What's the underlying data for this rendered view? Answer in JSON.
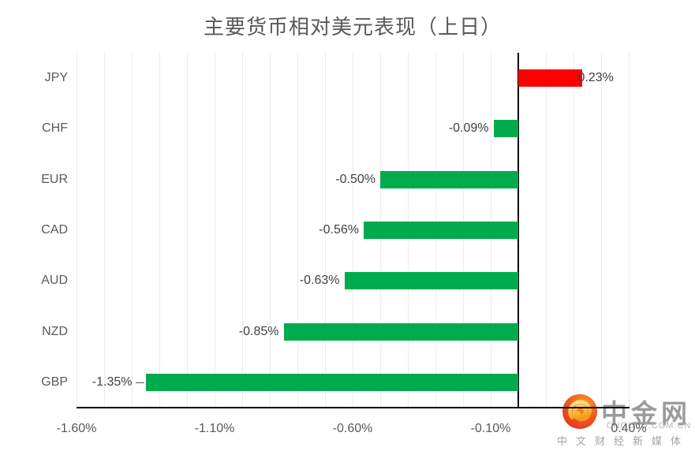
{
  "title": "主要货币相对美元表现（上日）",
  "chart_data": {
    "type": "bar",
    "orientation": "horizontal",
    "categories": [
      "JPY",
      "CHF",
      "EUR",
      "CAD",
      "AUD",
      "NZD",
      "GBP"
    ],
    "values": [
      0.23,
      -0.09,
      -0.5,
      -0.56,
      -0.63,
      -0.85,
      -1.35
    ],
    "data_labels": [
      "0.23%",
      "-0.09%",
      "-0.50%",
      "-0.56%",
      "-0.63%",
      "-0.85%",
      "-1.35%"
    ],
    "leader_lines": [
      false,
      false,
      false,
      false,
      false,
      false,
      true
    ],
    "x_ticks": [
      {
        "label": "-1.60%",
        "value": -1.6
      },
      {
        "label": "-1.10%",
        "value": -1.1
      },
      {
        "label": "-0.60%",
        "value": -0.6
      },
      {
        "label": "-0.10%",
        "value": -0.1
      },
      {
        "label": "0.40%",
        "value": 0.4
      }
    ],
    "xlim": [
      -1.6,
      0.4
    ],
    "grid_step": 0.1,
    "grid_on": true,
    "positive_color": "#ff0000",
    "negative_color": "#00ab4e",
    "gridline_color": "#ececec",
    "axis_color": "#000000",
    "label_color": "#404040",
    "tick_color": "#595959"
  },
  "watermark": {
    "brand": "中金网",
    "domain": "CNGOLD.COM.CN",
    "tagline": "中文财经新媒体"
  }
}
